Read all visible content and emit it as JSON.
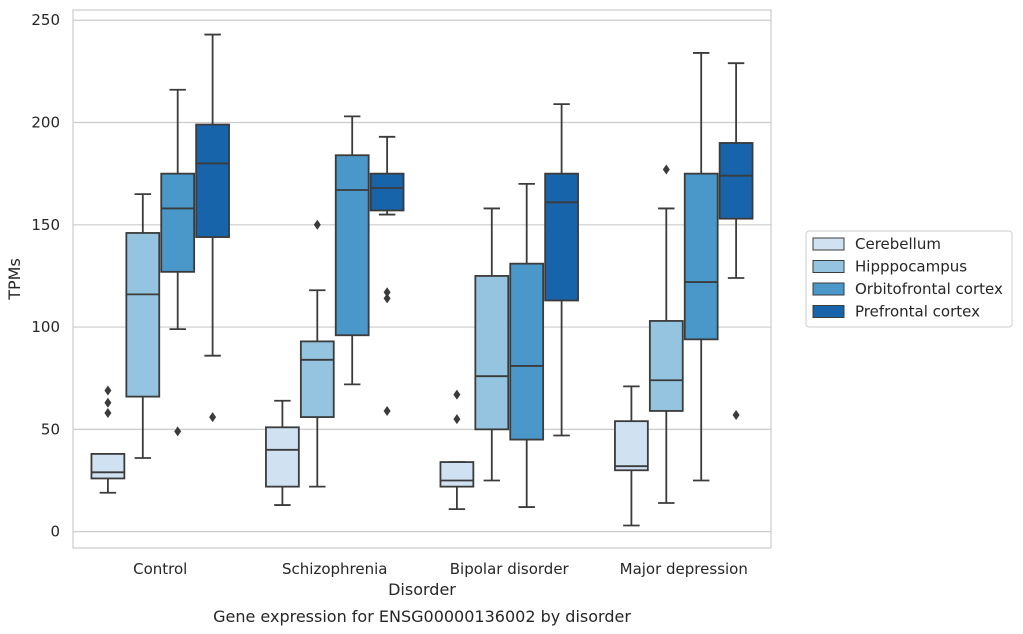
{
  "chart_data": {
    "type": "boxplot",
    "title": "Gene expression for ENSG00000136002 by disorder",
    "xlabel": "Disorder",
    "ylabel": "TPMs",
    "ylim": [
      -8,
      255
    ],
    "yticks": [
      0,
      50,
      100,
      150,
      200,
      250
    ],
    "grid": true,
    "legend_position": "right",
    "categories": [
      "Control",
      "Schizophrenia",
      "Bipolar disorder",
      "Major depression"
    ],
    "series": [
      {
        "name": "Cerebellum",
        "color": "#d0e1f2",
        "boxes": [
          {
            "whislo": 19,
            "q1": 26,
            "med": 29,
            "q3": 38,
            "whishi": 38,
            "fliers": [
              58,
              63,
              69
            ]
          },
          {
            "whislo": 13,
            "q1": 22,
            "med": 40,
            "q3": 51,
            "whishi": 64,
            "fliers": []
          },
          {
            "whislo": 11,
            "q1": 22,
            "med": 25,
            "q3": 34,
            "whishi": 34,
            "fliers": [
              55,
              67
            ]
          },
          {
            "whislo": 3,
            "q1": 30,
            "med": 32,
            "q3": 54,
            "whishi": 71,
            "fliers": []
          }
        ]
      },
      {
        "name": "Hipppocampus",
        "color": "#94c4df",
        "boxes": [
          {
            "whislo": 36,
            "q1": 66,
            "med": 116,
            "q3": 146,
            "whishi": 165,
            "fliers": []
          },
          {
            "whislo": 22,
            "q1": 56,
            "med": 84,
            "q3": 93,
            "whishi": 118,
            "fliers": [
              150
            ]
          },
          {
            "whislo": 25,
            "q1": 50,
            "med": 76,
            "q3": 125,
            "whishi": 158,
            "fliers": []
          },
          {
            "whislo": 14,
            "q1": 59,
            "med": 74,
            "q3": 103,
            "whishi": 158,
            "fliers": [
              177
            ]
          }
        ]
      },
      {
        "name": "Orbitofrontal cortex",
        "color": "#4a98c9",
        "boxes": [
          {
            "whislo": 99,
            "q1": 127,
            "med": 158,
            "q3": 175,
            "whishi": 216,
            "fliers": [
              49
            ]
          },
          {
            "whislo": 72,
            "q1": 96,
            "med": 167,
            "q3": 184,
            "whishi": 203,
            "fliers": []
          },
          {
            "whislo": 12,
            "q1": 45,
            "med": 81,
            "q3": 131,
            "whishi": 170,
            "fliers": []
          },
          {
            "whislo": 25,
            "q1": 94,
            "med": 122,
            "q3": 175,
            "whishi": 234,
            "fliers": []
          }
        ]
      },
      {
        "name": "Prefrontal cortex",
        "color": "#1764ab",
        "boxes": [
          {
            "whislo": 86,
            "q1": 144,
            "med": 180,
            "q3": 199,
            "whishi": 243,
            "fliers": [
              56
            ]
          },
          {
            "whislo": 155,
            "q1": 157,
            "med": 168,
            "q3": 175,
            "whishi": 193,
            "fliers": [
              59,
              114,
              117
            ]
          },
          {
            "whislo": 47,
            "q1": 113,
            "med": 161,
            "q3": 175,
            "whishi": 209,
            "fliers": []
          },
          {
            "whislo": 124,
            "q1": 153,
            "med": 174,
            "q3": 190,
            "whishi": 229,
            "fliers": [
              57
            ]
          }
        ]
      }
    ]
  }
}
